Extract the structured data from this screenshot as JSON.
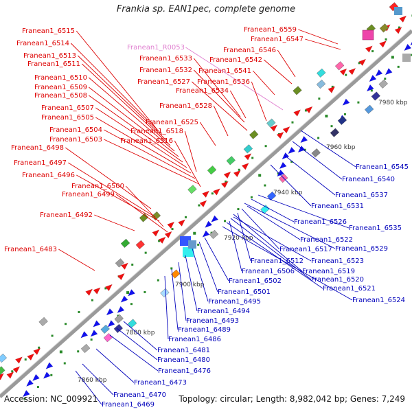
{
  "title": "Frankia sp. EAN1pec, complete genome",
  "accession_text": "Accession: NC_009921",
  "summary_text": "Topology: circular; Length: 8,982,042 bp; Genes: 7,249",
  "colors": {
    "top_strand_label": "#dd0000",
    "bottom_strand_label": "#0000bb",
    "rna_label": "#e080d0",
    "top_arrow": "#ee1111",
    "bottom_arrow": "#1111ee",
    "backbone": "#9a9a9a"
  },
  "ticks": [
    "7860 kbp",
    "7880 kbp",
    "7900 kbp",
    "7920 kbp",
    "7940 kbp",
    "7960 kbp",
    "7980 kbp"
  ],
  "top_labels": [
    "Franean1_6559",
    "Franean1_6547",
    "Franean1_6546",
    "Franean1_6542",
    "Franean1_6541",
    "Franean1_6515",
    "Franean1_6514",
    "Franean1_R0053",
    "Franean1_6513",
    "Franean1_6511",
    "Franean1_6533",
    "Franean1_6532",
    "Franean1_6536",
    "Franean1_6510",
    "Franean1_6527",
    "Franean1_6509",
    "Franean1_6534",
    "Franean1_6508",
    "Franean1_6528",
    "Franean1_6507",
    "Franean1_6505",
    "Franean1_6525",
    "Franean1_6504",
    "Franean1_6518",
    "Franean1_6503",
    "Franean1_6516",
    "Franean1_6498",
    "Franean1_6497",
    "Franean1_6496",
    "Franean1_6500",
    "Franean1_6499",
    "Franean1_6492",
    "Franean1_6483"
  ],
  "bottom_labels": [
    "Franean1_6545",
    "Franean1_6540",
    "Franean1_6537",
    "Franean1_6531",
    "Franean1_6526",
    "Franean1_6535",
    "Franean1_6522",
    "Franean1_6529",
    "Franean1_6517",
    "Franean1_6512",
    "Franean1_6523",
    "Franean1_6506",
    "Franean1_6519",
    "Franean1_6502",
    "Franean1_6520",
    "Franean1_6521",
    "Franean1_6501",
    "Franean1_6524",
    "Franean1_6495",
    "Franean1_6494",
    "Franean1_6493",
    "Franean1_6489",
    "Franean1_6486",
    "Franean1_6481",
    "Franean1_6480",
    "Franean1_6476",
    "Franean1_6473",
    "Franean1_6470",
    "Franean1_6469"
  ]
}
